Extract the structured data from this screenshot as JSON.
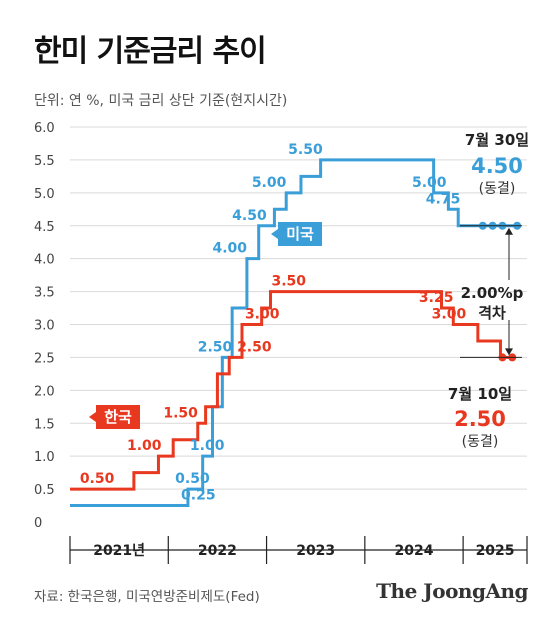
{
  "title": "한미 기준금리 추이",
  "unit_note": "단위: 연 %, 미국 금리 상단 기준(현지시간)",
  "source": "자료: 한국은행, 미국연방준비제도(Fed)",
  "logo": "The JoongAng",
  "colors": {
    "us": "#3a9ed8",
    "kr": "#e8381f",
    "grid": "#d9d9d9",
    "axis": "#222222"
  },
  "chart_data": {
    "type": "line",
    "step": true,
    "ylim": [
      0,
      6.0
    ],
    "yticks": [
      "0",
      "0.5",
      "1.0",
      "1.5",
      "2.0",
      "2.5",
      "3.0",
      "3.5",
      "4.0",
      "4.5",
      "5.0",
      "5.5",
      "6.0"
    ],
    "xlim": [
      2021.0,
      2025.65
    ],
    "years": [
      {
        "label": "2021년",
        "from": 2021.0,
        "to": 2022.0
      },
      {
        "label": "2022",
        "from": 2022.0,
        "to": 2023.0
      },
      {
        "label": "2023",
        "from": 2023.0,
        "to": 2024.0
      },
      {
        "label": "2024",
        "from": 2024.0,
        "to": 2025.0
      },
      {
        "label": "2025",
        "from": 2025.0,
        "to": 2025.65
      }
    ],
    "series": [
      {
        "name": "미국",
        "color": "#3a9ed8",
        "steps": [
          [
            2021.0,
            0.25
          ],
          [
            2022.2,
            0.5
          ],
          [
            2022.35,
            1.0
          ],
          [
            2022.45,
            1.75
          ],
          [
            2022.55,
            2.5
          ],
          [
            2022.65,
            3.25
          ],
          [
            2022.8,
            4.0
          ],
          [
            2022.92,
            4.5
          ],
          [
            2023.08,
            4.75
          ],
          [
            2023.2,
            5.0
          ],
          [
            2023.35,
            5.25
          ],
          [
            2023.55,
            5.5
          ],
          [
            2024.7,
            5.0
          ],
          [
            2024.85,
            4.75
          ],
          [
            2024.95,
            4.5
          ],
          [
            2025.55,
            4.5
          ]
        ],
        "hold_dots": [
          2025.2,
          2025.3,
          2025.4,
          2025.55
        ],
        "labels": [
          {
            "text": "0.25",
            "x": 2022.13,
            "y": 0.25
          },
          {
            "text": "0.50",
            "x": 2022.07,
            "y": 0.5
          },
          {
            "text": "1.00",
            "x": 2022.22,
            "y": 1.0
          },
          {
            "text": "2.50",
            "x": 2022.3,
            "y": 2.5
          },
          {
            "text": "4.00",
            "x": 2022.45,
            "y": 4.0
          },
          {
            "text": "4.50",
            "x": 2022.65,
            "y": 4.5
          },
          {
            "text": "5.00",
            "x": 2022.85,
            "y": 5.0
          },
          {
            "text": "5.50",
            "x": 2023.22,
            "y": 5.5
          },
          {
            "text": "5.00",
            "x": 2024.48,
            "y": 5.0
          },
          {
            "text": "4.75",
            "x": 2024.62,
            "y": 4.75
          }
        ],
        "legend": "미국"
      },
      {
        "name": "한국",
        "color": "#e8381f",
        "steps": [
          [
            2021.0,
            0.5
          ],
          [
            2021.65,
            0.75
          ],
          [
            2021.9,
            1.0
          ],
          [
            2022.05,
            1.25
          ],
          [
            2022.3,
            1.5
          ],
          [
            2022.38,
            1.75
          ],
          [
            2022.5,
            2.25
          ],
          [
            2022.62,
            2.5
          ],
          [
            2022.75,
            3.0
          ],
          [
            2022.95,
            3.25
          ],
          [
            2023.04,
            3.5
          ],
          [
            2024.78,
            3.25
          ],
          [
            2024.9,
            3.0
          ],
          [
            2025.15,
            2.75
          ],
          [
            2025.38,
            2.5
          ],
          [
            2025.5,
            2.5
          ]
        ],
        "hold_dots": [
          2025.4,
          2025.5
        ],
        "labels": [
          {
            "text": "0.50",
            "x": 2021.1,
            "y": 0.5
          },
          {
            "text": "1.00",
            "x": 2021.58,
            "y": 1.0
          },
          {
            "text": "1.50",
            "x": 2021.95,
            "y": 1.5
          },
          {
            "text": "2.50",
            "x": 2022.7,
            "y": 2.5
          },
          {
            "text": "3.00",
            "x": 2022.78,
            "y": 3.0
          },
          {
            "text": "3.50",
            "x": 2023.05,
            "y": 3.5
          },
          {
            "text": "3.25",
            "x": 2024.55,
            "y": 3.25
          },
          {
            "text": "3.00",
            "x": 2024.68,
            "y": 3.0
          }
        ],
        "legend": "한국"
      }
    ],
    "annotations": {
      "us_date": "7월 30일",
      "us_value": "4.50",
      "us_status": "(동결)",
      "kr_date": "7월 10일",
      "kr_value": "2.50",
      "kr_status": "(동결)",
      "gap_value": "2.00%p",
      "gap_label": "격차"
    }
  }
}
